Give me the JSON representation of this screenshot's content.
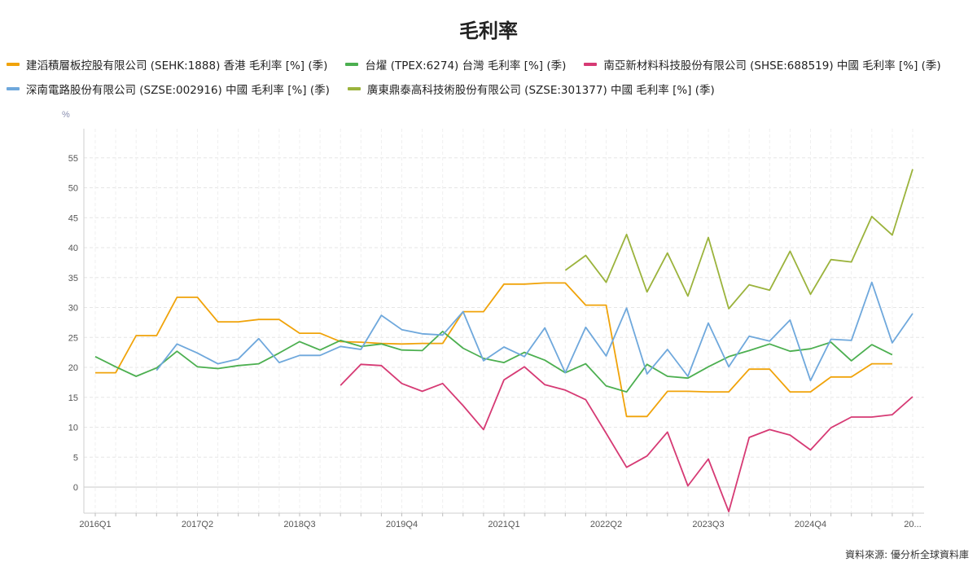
{
  "title": "毛利率",
  "source": "資料來源: 優分析全球資料庫",
  "chart_data": {
    "type": "line",
    "title": "毛利率",
    "ylabel": "%",
    "ylim": [
      -4,
      58
    ],
    "yticks": [
      0,
      5,
      10,
      15,
      20,
      25,
      30,
      35,
      40,
      45,
      50,
      55
    ],
    "grid": true,
    "legend_position": "top",
    "x": [
      "2016Q1",
      "2016Q2",
      "2016Q3",
      "2016Q4",
      "2017Q1",
      "2017Q2",
      "2017Q3",
      "2017Q4",
      "2018Q1",
      "2018Q2",
      "2018Q3",
      "2018Q4",
      "2019Q1",
      "2019Q2",
      "2019Q3",
      "2019Q4",
      "2020Q1",
      "2020Q2",
      "2020Q3",
      "2020Q4",
      "2021Q1",
      "2021Q2",
      "2021Q3",
      "2021Q4",
      "2022Q1",
      "2022Q2",
      "2022Q3",
      "2022Q4",
      "2023Q1",
      "2023Q2",
      "2023Q3",
      "2023Q4",
      "2024Q1",
      "2024Q2",
      "2024Q3",
      "2024Q4",
      "2025Q1",
      "2025Q2",
      "2025Q3",
      "2025Q4",
      "2026Q1"
    ],
    "xtick_labels": [
      "2016Q1",
      "2017Q2",
      "2018Q3",
      "2019Q4",
      "2021Q1",
      "2022Q2",
      "2023Q3",
      "2024Q4",
      "20..."
    ],
    "xtick_indices": [
      0,
      5,
      10,
      15,
      20,
      25,
      30,
      35,
      40
    ],
    "series": [
      {
        "name": "建滔積層板控股有限公司 (SEHK:1888) 香港 毛利率 [%] (季)",
        "color": "#f0a30a",
        "values": [
          19.1,
          19.1,
          25.3,
          25.3,
          31.7,
          31.7,
          27.6,
          27.6,
          28.0,
          28.0,
          25.7,
          25.7,
          24.3,
          24.2,
          24.0,
          23.9,
          24.0,
          24.0,
          29.3,
          29.3,
          33.9,
          33.9,
          34.1,
          34.1,
          30.4,
          30.4,
          11.8,
          11.8,
          16.0,
          16.0,
          15.9,
          15.9,
          19.7,
          19.7,
          15.9,
          15.9,
          18.4,
          18.4,
          20.6,
          20.6,
          null
        ]
      },
      {
        "name": "台燿 (TPEX:6274) 台灣 毛利率 [%] (季)",
        "color": "#4caf50",
        "values": [
          21.8,
          20.1,
          18.5,
          19.9,
          22.7,
          20.1,
          19.8,
          20.3,
          20.6,
          22.4,
          24.3,
          22.9,
          24.5,
          23.5,
          23.9,
          22.9,
          22.8,
          26.0,
          23.2,
          21.5,
          20.8,
          22.5,
          21.2,
          19.1,
          20.6,
          16.9,
          15.9,
          20.5,
          18.5,
          18.2,
          20.1,
          21.8,
          22.8,
          23.9,
          22.7,
          23.1,
          24.2,
          21.1,
          23.8,
          22.1,
          null
        ]
      },
      {
        "name": "南亞新材料科技股份有限公司 (SHSE:688519) 中國 毛利率 [%] (季)",
        "color": "#d63a74",
        "values": [
          null,
          null,
          null,
          null,
          null,
          null,
          null,
          null,
          null,
          null,
          null,
          null,
          17.0,
          20.5,
          20.3,
          17.3,
          16.0,
          17.3,
          13.6,
          9.6,
          17.9,
          20.1,
          17.1,
          16.2,
          14.6,
          9.0,
          3.3,
          5.2,
          9.2,
          0.2,
          4.7,
          -4.1,
          8.3,
          9.6,
          8.7,
          6.2,
          9.9,
          11.7,
          11.7,
          12.1,
          15.1
        ]
      },
      {
        "name": "深南電路股份有限公司 (SZSE:002916) 中國 毛利率 [%] (季)",
        "color": "#6fa8dc",
        "values": [
          null,
          null,
          null,
          19.5,
          23.9,
          22.4,
          20.6,
          21.4,
          24.8,
          20.8,
          22.0,
          22.0,
          23.5,
          23.0,
          28.7,
          26.3,
          25.6,
          25.4,
          29.3,
          21.1,
          23.4,
          21.8,
          26.6,
          19.1,
          26.7,
          21.9,
          29.9,
          18.9,
          23.0,
          18.5,
          27.4,
          20.1,
          25.2,
          24.4,
          27.9,
          17.8,
          24.7,
          24.5,
          34.2,
          24.1,
          29.0
        ]
      },
      {
        "name": "廣東鼎泰高科技術股份有限公司 (SZSE:301377) 中國 毛利率 [%] (季)",
        "color": "#9bb33c",
        "values": [
          null,
          null,
          null,
          null,
          null,
          null,
          null,
          null,
          null,
          null,
          null,
          null,
          null,
          null,
          null,
          null,
          null,
          null,
          null,
          null,
          null,
          null,
          null,
          36.2,
          38.7,
          34.2,
          42.2,
          32.6,
          39.1,
          31.9,
          41.7,
          29.8,
          33.8,
          32.9,
          39.4,
          32.2,
          38.0,
          37.6,
          45.2,
          42.1,
          53.1
        ]
      }
    ]
  }
}
